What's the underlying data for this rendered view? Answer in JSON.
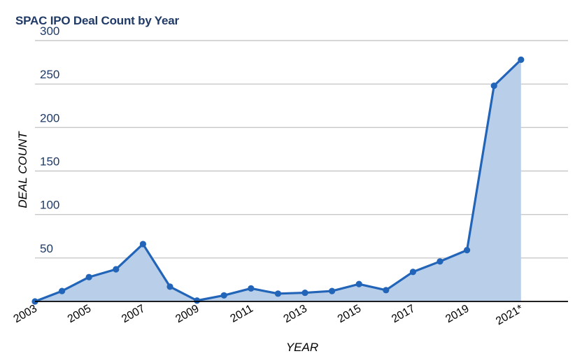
{
  "chart_data": {
    "type": "area",
    "title": "SPAC IPO Deal Count by Year",
    "xlabel": "YEAR",
    "ylabel": "DEAL COUNT",
    "x": [
      "2003",
      "2004",
      "2005",
      "2006",
      "2007",
      "2008",
      "2009",
      "2010",
      "2011",
      "2012",
      "2013",
      "2014",
      "2015",
      "2016",
      "2017",
      "2018",
      "2019",
      "2020",
      "2021*"
    ],
    "x_tick_labels": [
      "2003",
      "2005",
      "2007",
      "2009",
      "2011",
      "2013",
      "2015",
      "2017",
      "2019",
      "2021*"
    ],
    "series": [
      {
        "values": [
          0,
          12,
          28,
          37,
          66,
          17,
          1,
          7,
          15,
          9,
          10,
          12,
          20,
          13,
          34,
          46,
          59,
          248,
          278
        ]
      }
    ],
    "y_ticks": [
      50,
      100,
      150,
      200,
      250,
      300
    ],
    "ylim": [
      0,
      300
    ],
    "grid": true,
    "legend": "none",
    "colors": {
      "line": "#2164b8",
      "fill": "#b9cfe9",
      "grid": "#c8c8c8",
      "axis": "#000000",
      "title": "#1f3a66",
      "tick_label": "#1f3a66"
    }
  }
}
